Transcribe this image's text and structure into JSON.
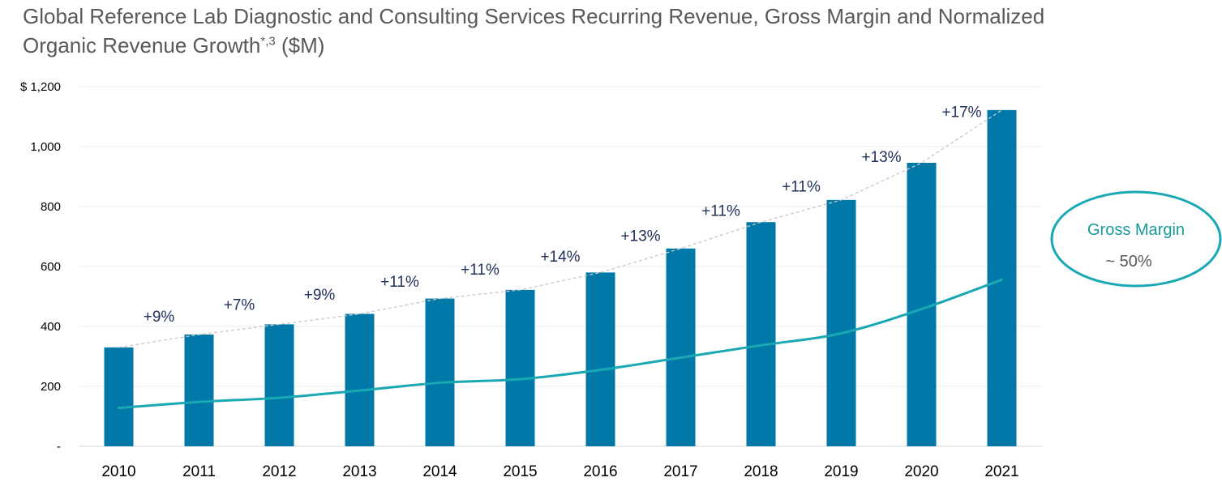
{
  "title_main": "Global Reference Lab Diagnostic and Consulting Services Recurring Revenue, Gross Margin and Normalized Organic Revenue Growth",
  "title_sup": "*,3",
  "title_suffix": " ($M)",
  "callout": {
    "label": "Gross Margin",
    "value": "~ 50%"
  },
  "colors": {
    "bar": "#0079a8",
    "gross_margin_line": "#1aa9b4",
    "trend_line": "#c8c8c8",
    "callout_border": "#1aa9b4"
  },
  "chart_data": {
    "type": "bar",
    "categories": [
      "2010",
      "2011",
      "2012",
      "2013",
      "2014",
      "2015",
      "2016",
      "2017",
      "2018",
      "2019",
      "2020",
      "2021"
    ],
    "series": [
      {
        "values": [
          330,
          373,
          407,
          442,
          493,
          522,
          580,
          660,
          748,
          822,
          946,
          1122
        ]
      }
    ],
    "gross_margin_values": [
      128,
      148,
      162,
      186,
      212,
      224,
      255,
      296,
      337,
      377,
      458,
      556
    ],
    "growth_labels": [
      "",
      "+9%",
      "+7%",
      "+9%",
      "+11%",
      "+11%",
      "+14%",
      "+13%",
      "+11%",
      "+11%",
      "+13%",
      "+17%"
    ],
    "yticks": [
      "-",
      "200",
      "400",
      "600",
      "800",
      "1,000",
      "$ 1,200"
    ],
    "ylim": [
      0,
      1200
    ],
    "grid": true
  }
}
